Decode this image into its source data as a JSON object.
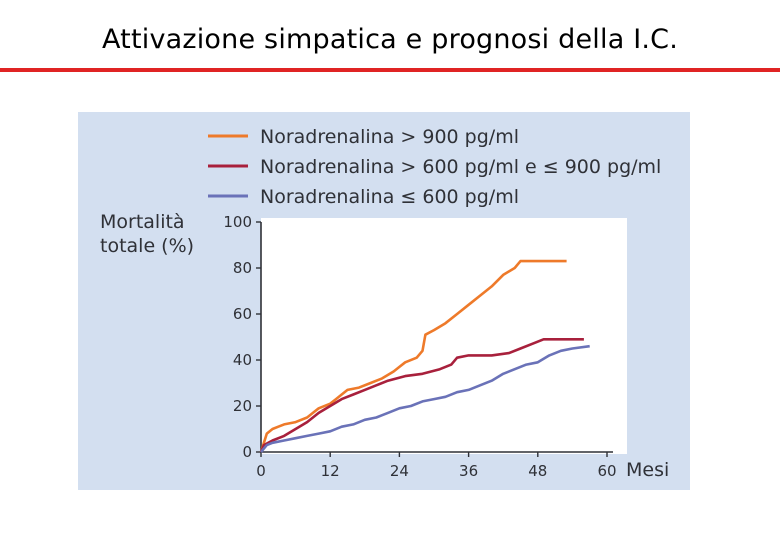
{
  "slide": {
    "title": "Attivazione simpatica e prognosi della I.C."
  },
  "colors": {
    "accent_rule": "#e02424",
    "figure_background": "#d3dff0",
    "plot_background": "#ffffff"
  },
  "chart_data": {
    "type": "line",
    "title": "",
    "ylabel": [
      "Mortalità",
      "totale (%)"
    ],
    "xlabel": "Mesi",
    "xlim": [
      0,
      60
    ],
    "ylim": [
      0,
      100
    ],
    "xticks": [
      0,
      12,
      24,
      36,
      48,
      60
    ],
    "yticks": [
      0,
      20,
      40,
      60,
      80,
      100
    ],
    "grid": false,
    "legend_position": "top",
    "series": [
      {
        "name": "Noradrenalina > 900 pg/ml",
        "color": "#ee7a2a",
        "points": [
          [
            0,
            0
          ],
          [
            0.5,
            4
          ],
          [
            1,
            8
          ],
          [
            2,
            10
          ],
          [
            3,
            11
          ],
          [
            4,
            12
          ],
          [
            6,
            13
          ],
          [
            8,
            15
          ],
          [
            9,
            17
          ],
          [
            10,
            19
          ],
          [
            12,
            21
          ],
          [
            13,
            23
          ],
          [
            14,
            25
          ],
          [
            15,
            27
          ],
          [
            17,
            28
          ],
          [
            19,
            30
          ],
          [
            21,
            32
          ],
          [
            23,
            35
          ],
          [
            24,
            37
          ],
          [
            25,
            39
          ],
          [
            27,
            41
          ],
          [
            28,
            44
          ],
          [
            28.5,
            51
          ],
          [
            30,
            53
          ],
          [
            32,
            56
          ],
          [
            34,
            60
          ],
          [
            36,
            64
          ],
          [
            38,
            68
          ],
          [
            40,
            72
          ],
          [
            42,
            77
          ],
          [
            44,
            80
          ],
          [
            45,
            83
          ],
          [
            53,
            83
          ]
        ]
      },
      {
        "name": "Noradrenalina > 600 pg/ml e ≤ 900 pg/ml",
        "color": "#a8203c",
        "points": [
          [
            0,
            0
          ],
          [
            0.5,
            3
          ],
          [
            2,
            5
          ],
          [
            4,
            7
          ],
          [
            6,
            10
          ],
          [
            8,
            13
          ],
          [
            10,
            17
          ],
          [
            12,
            20
          ],
          [
            14,
            23
          ],
          [
            16,
            25
          ],
          [
            18,
            27
          ],
          [
            20,
            29
          ],
          [
            22,
            31
          ],
          [
            25,
            33
          ],
          [
            28,
            34
          ],
          [
            31,
            36
          ],
          [
            33,
            38
          ],
          [
            34,
            41
          ],
          [
            36,
            42
          ],
          [
            40,
            42
          ],
          [
            43,
            43
          ],
          [
            45,
            45
          ],
          [
            47,
            47
          ],
          [
            49,
            49
          ],
          [
            56,
            49
          ]
        ]
      },
      {
        "name": "Noradrenalina ≤ 600 pg/ml",
        "color": "#6a72b8",
        "points": [
          [
            0,
            0
          ],
          [
            1,
            3
          ],
          [
            2,
            4
          ],
          [
            4,
            5
          ],
          [
            6,
            6
          ],
          [
            8,
            7
          ],
          [
            10,
            8
          ],
          [
            12,
            9
          ],
          [
            14,
            11
          ],
          [
            16,
            12
          ],
          [
            18,
            14
          ],
          [
            20,
            15
          ],
          [
            22,
            17
          ],
          [
            24,
            19
          ],
          [
            26,
            20
          ],
          [
            28,
            22
          ],
          [
            30,
            23
          ],
          [
            32,
            24
          ],
          [
            34,
            26
          ],
          [
            36,
            27
          ],
          [
            38,
            29
          ],
          [
            40,
            31
          ],
          [
            42,
            34
          ],
          [
            44,
            36
          ],
          [
            46,
            38
          ],
          [
            48,
            39
          ],
          [
            50,
            42
          ],
          [
            52,
            44
          ],
          [
            54,
            45
          ],
          [
            57,
            46
          ]
        ]
      }
    ]
  }
}
